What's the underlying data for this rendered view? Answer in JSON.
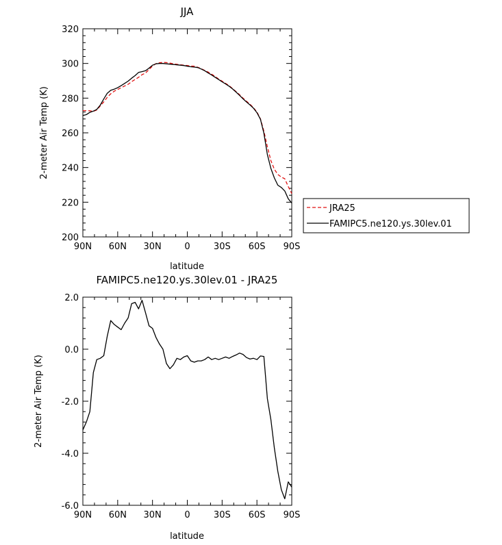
{
  "chart_data": [
    {
      "type": "line",
      "title": "JJA",
      "xlabel": "latitude",
      "ylabel": "2-meter Air Temp (K)",
      "xlim": [
        90,
        -90
      ],
      "ylim": [
        200,
        320
      ],
      "xticks": [
        90,
        60,
        30,
        0,
        -30,
        -60,
        -90
      ],
      "xtick_labels": [
        "90N",
        "60N",
        "30N",
        "0",
        "30S",
        "60S",
        "90S"
      ],
      "yticks": [
        200,
        220,
        240,
        260,
        280,
        300,
        320
      ],
      "ytick_labels": [
        "200",
        "220",
        "240",
        "260",
        "280",
        "300",
        "320"
      ],
      "legend_position": "right, outside plot",
      "series": [
        {
          "name": "JRA25",
          "color": "#e01010",
          "dash": "dashed",
          "x": [
            90,
            87,
            84,
            81,
            78,
            75,
            72,
            69,
            66,
            63,
            60,
            57,
            54,
            51,
            48,
            45,
            42,
            39,
            36,
            33,
            30,
            27,
            24,
            21,
            18,
            15,
            12,
            9,
            6,
            3,
            0,
            -3,
            -6,
            -9,
            -12,
            -15,
            -18,
            -21,
            -24,
            -27,
            -30,
            -33,
            -36,
            -39,
            -42,
            -45,
            -48,
            -51,
            -54,
            -57,
            -60,
            -63,
            -66,
            -69,
            -72,
            -75,
            -78,
            -81,
            -84,
            -87,
            -90
          ],
          "y": [
            272.8,
            272.8,
            272.7,
            272.4,
            273.2,
            275.5,
            277.8,
            280.5,
            282.5,
            284.0,
            285.0,
            286.0,
            287.0,
            288.0,
            289.5,
            290.8,
            292.0,
            293.5,
            294.5,
            296.5,
            298.5,
            299.9,
            300.4,
            300.6,
            300.5,
            300.2,
            299.8,
            299.5,
            299.2,
            299.0,
            298.8,
            298.5,
            298.4,
            297.8,
            297.0,
            296.0,
            295.0,
            293.8,
            292.5,
            291.0,
            289.8,
            288.5,
            287.2,
            285.5,
            283.8,
            282.0,
            280.0,
            278.2,
            276.5,
            274.5,
            272.0,
            268.0,
            261.0,
            252.0,
            244.0,
            239.0,
            236.0,
            234.5,
            233.5,
            229.0,
            225.0
          ]
        },
        {
          "name": "FAMIPC5.ne120.ys.30lev.01",
          "color": "#000000",
          "dash": "solid",
          "x": [
            90,
            87,
            84,
            81,
            78,
            75,
            72,
            69,
            66,
            63,
            60,
            57,
            54,
            51,
            48,
            45,
            42,
            39,
            36,
            33,
            30,
            27,
            24,
            21,
            18,
            15,
            12,
            9,
            6,
            3,
            0,
            -3,
            -6,
            -9,
            -12,
            -15,
            -18,
            -21,
            -24,
            -27,
            -30,
            -33,
            -36,
            -39,
            -42,
            -45,
            -48,
            -51,
            -54,
            -57,
            -60,
            -63,
            -66,
            -69,
            -72,
            -75,
            -78,
            -81,
            -84,
            -87,
            -90
          ],
          "y": [
            270.0,
            270.5,
            271.8,
            272.5,
            273.5,
            276.0,
            279.5,
            282.8,
            284.5,
            285.2,
            286.0,
            287.2,
            288.5,
            289.8,
            291.5,
            293.0,
            294.8,
            295.3,
            295.8,
            297.3,
            299.0,
            299.8,
            300.0,
            300.0,
            299.8,
            299.6,
            299.4,
            299.2,
            299.0,
            298.8,
            298.4,
            298.1,
            297.9,
            297.6,
            296.8,
            295.8,
            294.5,
            293.3,
            292.0,
            290.7,
            289.4,
            288.2,
            286.9,
            285.3,
            283.5,
            281.6,
            279.6,
            277.8,
            276.1,
            274.2,
            271.6,
            267.8,
            259.8,
            247.5,
            239.5,
            234.0,
            229.8,
            228.5,
            226.5,
            222.0,
            219.5
          ]
        }
      ]
    },
    {
      "type": "line",
      "title": "FAMIPC5.ne120.ys.30lev.01 - JRA25",
      "xlabel": "latitude",
      "ylabel": "2-meter Air Temp (K)",
      "xlim": [
        90,
        -90
      ],
      "ylim": [
        -6.0,
        2.0
      ],
      "xticks": [
        90,
        60,
        30,
        0,
        -30,
        -60,
        -90
      ],
      "xtick_labels": [
        "90N",
        "60N",
        "30N",
        "0",
        "30S",
        "60S",
        "90S"
      ],
      "yticks": [
        -6.0,
        -4.0,
        -2.0,
        0.0,
        2.0
      ],
      "ytick_labels": [
        "-6.0",
        "-4.0",
        "-2.0",
        "0.0",
        "2.0"
      ],
      "series": [
        {
          "color": "#000000",
          "dash": "solid",
          "x": [
            90,
            87,
            84,
            81,
            78,
            75,
            72,
            69,
            66,
            63,
            60,
            57,
            54,
            51,
            48,
            45,
            42,
            39,
            36,
            33,
            30,
            27,
            24,
            21,
            18,
            15,
            12,
            9,
            6,
            3,
            0,
            -3,
            -6,
            -9,
            -12,
            -15,
            -18,
            -21,
            -24,
            -27,
            -30,
            -33,
            -36,
            -39,
            -42,
            -45,
            -48,
            -51,
            -54,
            -57,
            -60,
            -63,
            -66,
            -69,
            -72,
            -75,
            -78,
            -81,
            -84,
            -87,
            -90
          ],
          "y": [
            -3.1,
            -2.8,
            -2.4,
            -0.9,
            -0.4,
            -0.35,
            -0.25,
            0.5,
            1.1,
            0.95,
            0.85,
            0.75,
            1.0,
            1.2,
            1.75,
            1.8,
            1.55,
            1.88,
            1.4,
            0.9,
            0.8,
            0.45,
            0.2,
            0.0,
            -0.55,
            -0.75,
            -0.6,
            -0.35,
            -0.4,
            -0.3,
            -0.25,
            -0.45,
            -0.5,
            -0.45,
            -0.45,
            -0.4,
            -0.3,
            -0.4,
            -0.35,
            -0.4,
            -0.35,
            -0.3,
            -0.35,
            -0.28,
            -0.22,
            -0.15,
            -0.2,
            -0.32,
            -0.38,
            -0.35,
            -0.4,
            -0.26,
            -0.28,
            -1.9,
            -2.7,
            -3.8,
            -4.7,
            -5.4,
            -5.75,
            -5.1,
            -5.3
          ]
        }
      ]
    }
  ]
}
